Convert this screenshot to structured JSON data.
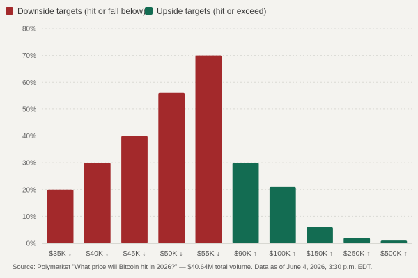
{
  "chart_data": {
    "type": "bar",
    "categories": [
      "$35K ↓",
      "$40K ↓",
      "$45K ↓",
      "$50K ↓",
      "$55K ↓",
      "$90K ↑",
      "$100K ↑",
      "$150K ↑",
      "$250K ↑",
      "$500K ↑"
    ],
    "values": [
      20,
      30,
      40,
      56,
      70,
      30,
      21,
      6,
      2,
      1
    ],
    "groups": [
      "downside",
      "downside",
      "downside",
      "downside",
      "downside",
      "upside",
      "upside",
      "upside",
      "upside",
      "upside"
    ],
    "series": [
      {
        "name": "Downside targets (hit or fall below)",
        "key": "downside",
        "color": "#a3292b"
      },
      {
        "name": "Upside targets (hit or exceed)",
        "key": "upside",
        "color": "#136c52"
      }
    ],
    "yticks": [
      "0%",
      "10%",
      "20%",
      "30%",
      "40%",
      "50%",
      "60%",
      "70%",
      "80%"
    ],
    "ylim": [
      0,
      80
    ],
    "grid": true,
    "legend_position": "top-left",
    "source": "Source: Polymarket \"What price will Bitcoin hit in 2026?\" — $40.64M total volume. Data as of June 4, 2026, 3:30 p.m. EDT."
  }
}
